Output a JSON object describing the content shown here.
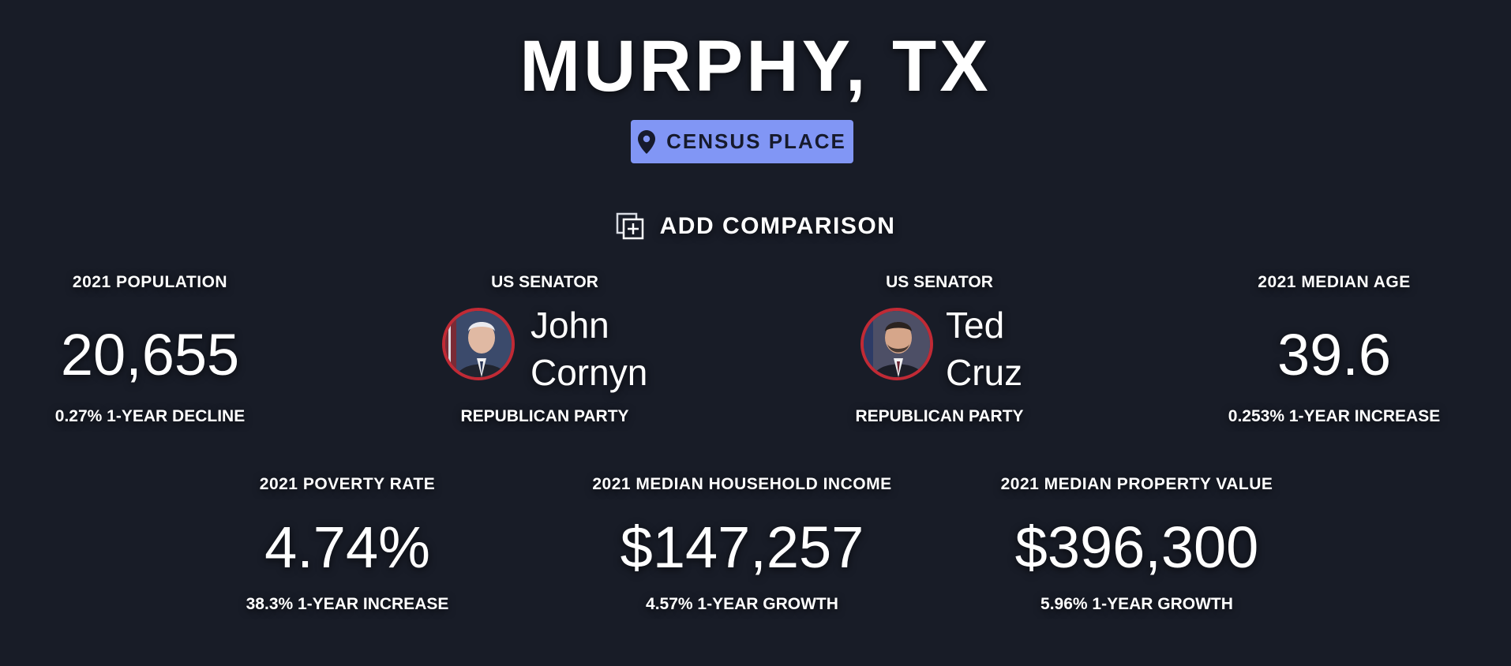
{
  "header": {
    "title": "MURPHY, TX",
    "badge_label": "CENSUS PLACE",
    "badge_icon": "map-pin-icon",
    "compare_label": "ADD COMPARISON",
    "compare_icon": "add-comparison-icon"
  },
  "stats_row1": {
    "population": {
      "label": "2021 POPULATION",
      "value": "20,655",
      "sub": "0.27% 1-YEAR DECLINE"
    },
    "senator1": {
      "label": "US SENATOR",
      "first_name": "John",
      "last_name": "Cornyn",
      "party": "REPUBLICAN PARTY"
    },
    "senator2": {
      "label": "US SENATOR",
      "first_name": "Ted",
      "last_name": "Cruz",
      "party": "REPUBLICAN PARTY"
    },
    "median_age": {
      "label": "2021 MEDIAN AGE",
      "value": "39.6",
      "sub": "0.253% 1-YEAR INCREASE"
    }
  },
  "stats_row2": {
    "poverty": {
      "label": "2021 POVERTY RATE",
      "value": "4.74%",
      "sub": "38.3% 1-YEAR INCREASE"
    },
    "income": {
      "label": "2021 MEDIAN HOUSEHOLD INCOME",
      "value": "$147,257",
      "sub": "4.57% 1-YEAR GROWTH"
    },
    "property": {
      "label": "2021 MEDIAN PROPERTY VALUE",
      "value": "$396,300",
      "sub": "5.96% 1-YEAR GROWTH"
    }
  },
  "colors": {
    "background": "#181c27",
    "badge": "#8196f5",
    "party_border": "#c12a35"
  }
}
